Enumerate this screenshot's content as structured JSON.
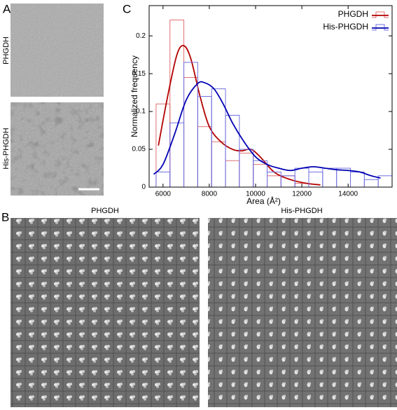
{
  "panels": {
    "a": {
      "label": "A",
      "images": [
        "PHGDH",
        "His-PHGDH"
      ]
    },
    "b": {
      "label": "B",
      "titles": [
        "PHGDH",
        "His-PHGDH"
      ]
    },
    "c": {
      "label": "C"
    }
  },
  "chart_data": {
    "type": "histogram",
    "x_label": "Area (Å²)",
    "y_label": "Normalized frequency",
    "xlim": [
      5400,
      15900
    ],
    "ylim": [
      0,
      0.24
    ],
    "xticks": [
      6000,
      8000,
      10000,
      12000,
      14000
    ],
    "yticks": [
      0,
      0.05,
      0.1,
      0.15,
      0.2
    ],
    "legend": "top-right",
    "series": [
      {
        "name": "PHGDH",
        "color": "#b30000",
        "bar_color": "#e07070",
        "bins": [
          5700,
          6300,
          6900,
          7500,
          8100,
          8700,
          9300,
          9900,
          10500,
          11100,
          11700,
          12300
        ],
        "values": [
          0.11,
          0.221,
          0.145,
          0.08,
          0.06,
          0.035,
          0.045,
          0.03,
          0.015,
          0.015,
          0.005
        ],
        "curve_x": [
          5800,
          6200,
          6600,
          6900,
          7200,
          7600,
          8000,
          8500,
          9000,
          9400,
          9800,
          10200,
          10800,
          11500,
          12200,
          12800
        ],
        "curve_y": [
          0.055,
          0.12,
          0.175,
          0.187,
          0.17,
          0.12,
          0.08,
          0.06,
          0.05,
          0.048,
          0.05,
          0.04,
          0.02,
          0.01,
          0.005,
          0.003
        ]
      },
      {
        "name": "His-PHGDH",
        "color": "#0000b3",
        "bar_color": "#7070e0",
        "bins": [
          5700,
          6300,
          6900,
          7500,
          8100,
          8700,
          9300,
          9900,
          10500,
          11100,
          11700,
          12300,
          12900,
          13500,
          14100,
          14700,
          15300,
          15900
        ],
        "values": [
          0.02,
          0.085,
          0.165,
          0.12,
          0.13,
          0.095,
          0.05,
          0.035,
          0.02,
          0.015,
          0.025,
          0.02,
          0.025,
          0.025,
          0.02,
          0.01,
          0.015
        ],
        "curve_x": [
          5600,
          6000,
          6500,
          7000,
          7500,
          7800,
          8200,
          8600,
          9000,
          9500,
          10000,
          10500,
          11000,
          11500,
          12000,
          12500,
          13000,
          13500,
          14000,
          14500,
          15000,
          15400
        ],
        "curve_y": [
          0.017,
          0.03,
          0.07,
          0.115,
          0.137,
          0.138,
          0.13,
          0.11,
          0.085,
          0.06,
          0.04,
          0.03,
          0.025,
          0.022,
          0.025,
          0.027,
          0.025,
          0.023,
          0.022,
          0.02,
          0.015,
          0.012
        ]
      }
    ]
  }
}
